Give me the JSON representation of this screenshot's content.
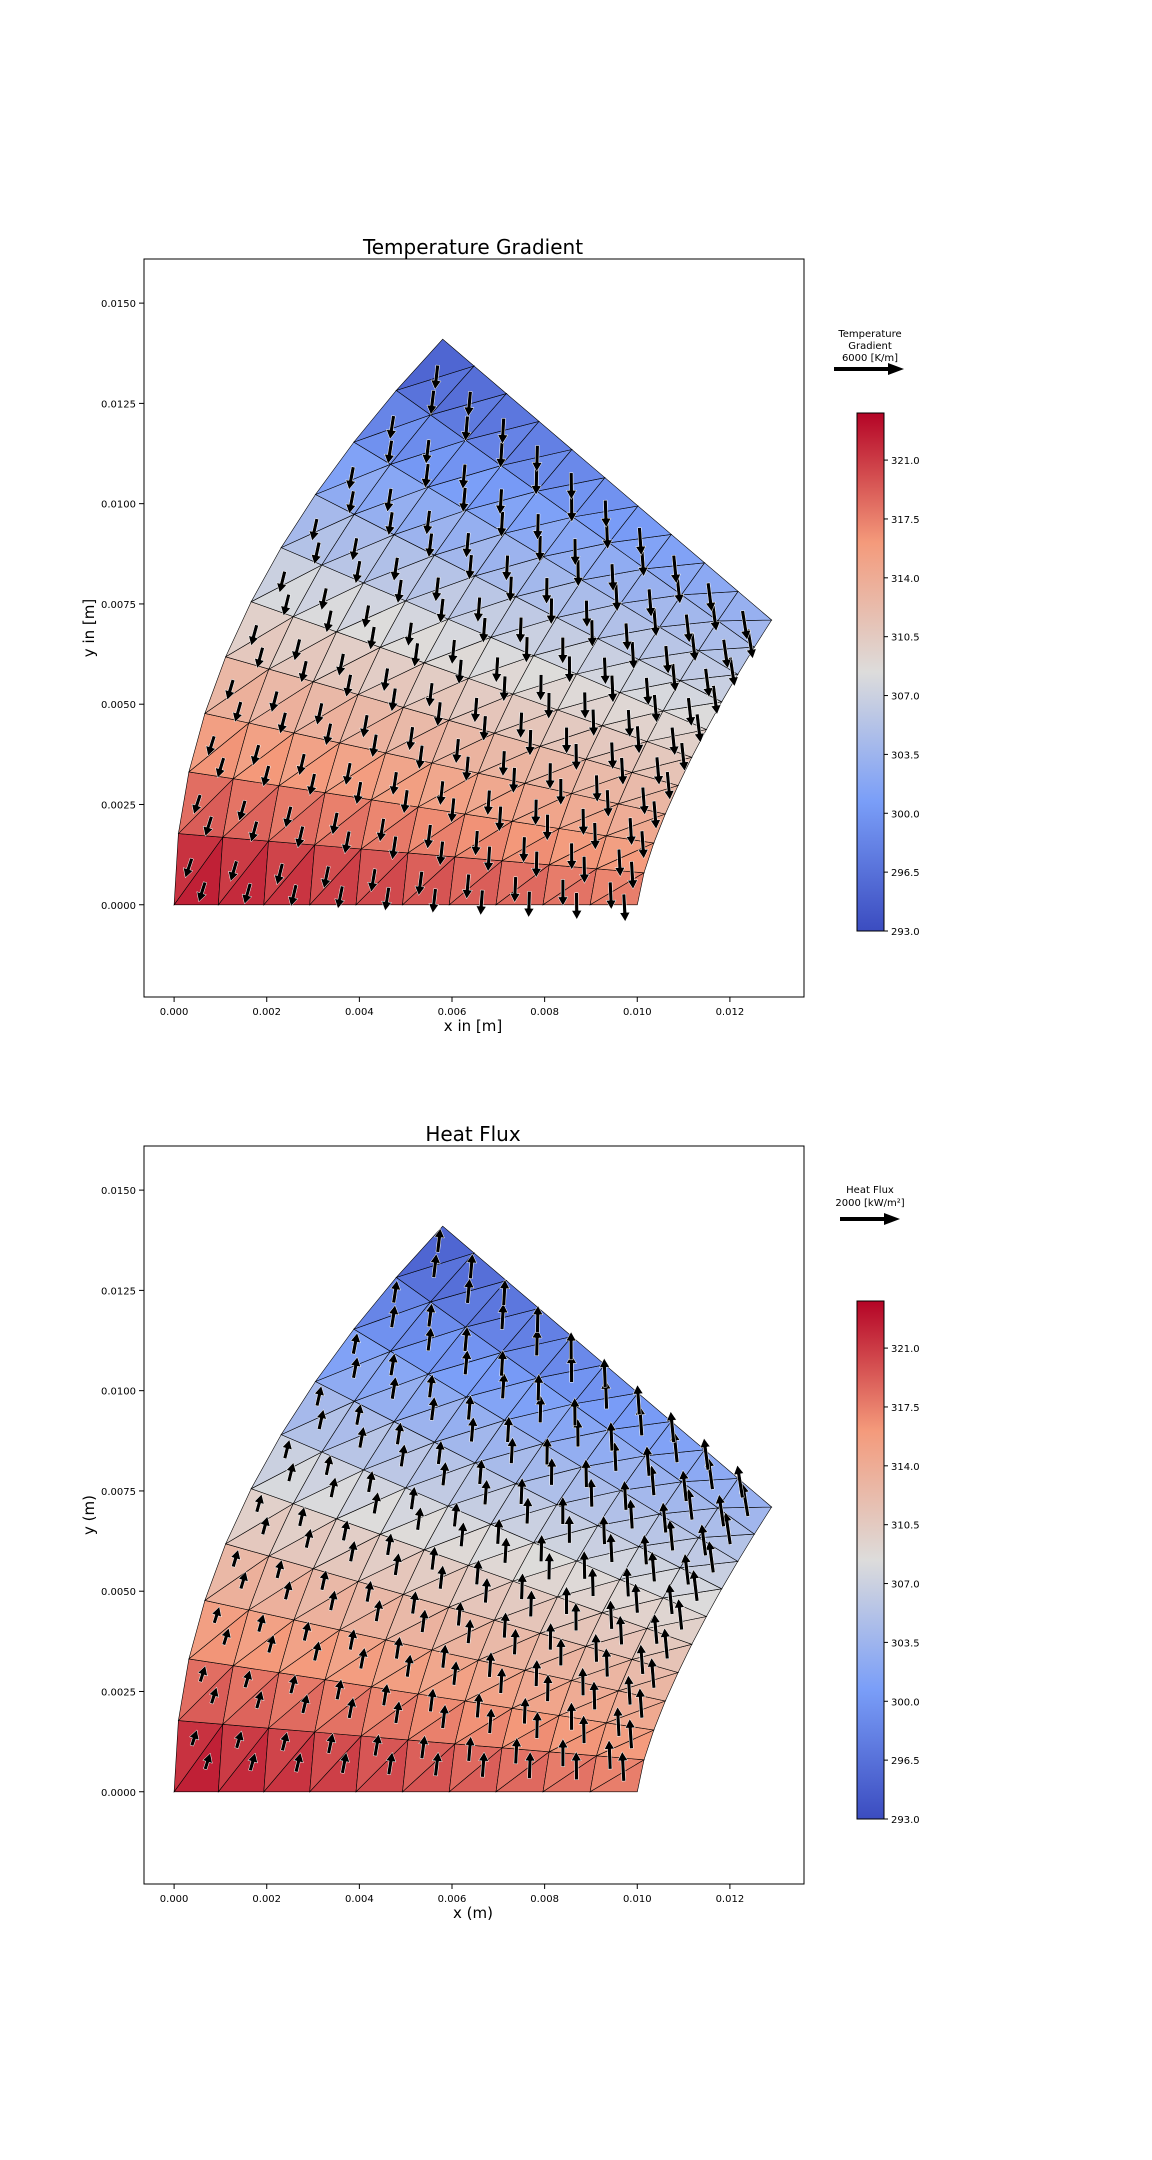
{
  "chart_data": [
    {
      "type": "quiver",
      "title": "Temperature Gradient",
      "xlabel": "x in [m]",
      "ylabel": "y in [m]",
      "xlim": [
        -0.00065,
        0.0136
      ],
      "ylim": [
        -0.0023,
        0.0161
      ],
      "xticks": [
        "0.000",
        "0.002",
        "0.004",
        "0.006",
        "0.008",
        "0.010",
        "0.012"
      ],
      "yticks": [
        "0.0000",
        "0.0025",
        "0.0050",
        "0.0075",
        "0.0100",
        "0.0125",
        "0.0150"
      ],
      "mesh": {
        "r_inner": 0.01,
        "r_outer": 0.0141,
        "theta_start_deg": 0,
        "theta_end_deg": 90,
        "curvature_power": 1.2,
        "element": "triangle"
      },
      "field": "temperature",
      "vector_direction": "toward decreasing temperature (down / outward-left)",
      "key": {
        "lines": [
          "Temperature",
          "Gradient",
          "6000 [K/m]"
        ],
        "value": 6000,
        "unit": "K/m"
      },
      "colorbar": {
        "min": 293.0,
        "max": 323.8,
        "ticks": [
          "293.0",
          "296.5",
          "300.0",
          "303.5",
          "307.0",
          "310.5",
          "314.0",
          "317.5",
          "321.0"
        ],
        "colormap": "coolwarm"
      }
    },
    {
      "type": "quiver",
      "title": "Heat Flux",
      "xlabel": "x (m)",
      "ylabel": "y (m)",
      "xlim": [
        -0.00065,
        0.0136
      ],
      "ylim": [
        -0.0023,
        0.0161
      ],
      "xticks": [
        "0.000",
        "0.002",
        "0.004",
        "0.006",
        "0.008",
        "0.010",
        "0.012"
      ],
      "yticks": [
        "0.0000",
        "0.0025",
        "0.0050",
        "0.0075",
        "0.0100",
        "0.0125",
        "0.0150"
      ],
      "mesh": {
        "r_inner": 0.01,
        "r_outer": 0.0141,
        "theta_start_deg": 0,
        "theta_end_deg": 90,
        "curvature_power": 1.2,
        "element": "triangle"
      },
      "field": "temperature",
      "vector_direction": "toward increasing temperature magnitude pattern (up / outward-right)",
      "key": {
        "lines": [
          "Heat Flux",
          "2000 [kW/m²]"
        ],
        "value": 2000,
        "unit": "kW/m²"
      },
      "colorbar": {
        "min": 293.0,
        "max": 323.8,
        "ticks": [
          "293.0",
          "296.5",
          "300.0",
          "303.5",
          "307.0",
          "310.5",
          "314.0",
          "317.5",
          "321.0"
        ],
        "colormap": "coolwarm"
      }
    }
  ]
}
